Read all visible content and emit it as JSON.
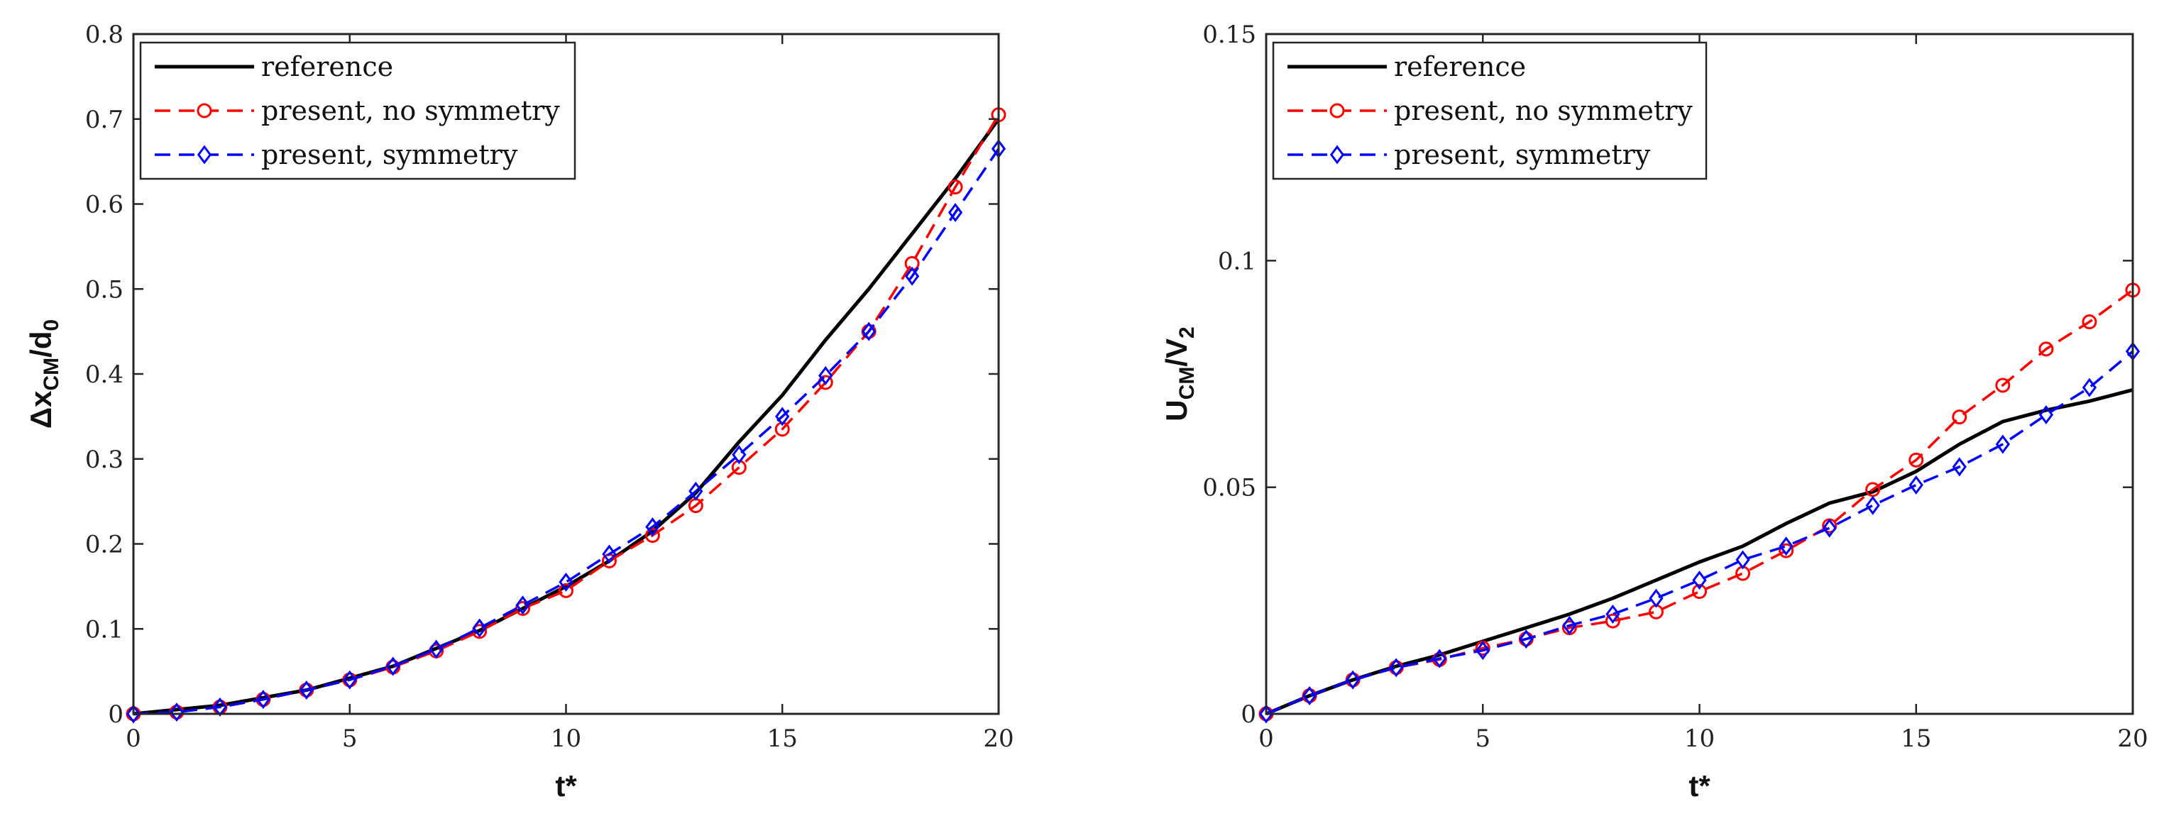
{
  "chart_data": [
    {
      "type": "line",
      "title": "",
      "xlabel": "t*",
      "ylabel": {
        "main": "Δx",
        "sub1": "CM",
        "mid": "/d",
        "sub2": "0"
      },
      "xlim": [
        0,
        20
      ],
      "ylim": [
        0,
        0.8
      ],
      "xticks": [
        "0",
        "5",
        "10",
        "15",
        "20"
      ],
      "yticks": [
        "0",
        "0.1",
        "0.2",
        "0.3",
        "0.4",
        "0.5",
        "0.6",
        "0.7",
        "0.8"
      ],
      "xtick_values": [
        0,
        5,
        10,
        15,
        20
      ],
      "ytick_values": [
        0,
        0.1,
        0.2,
        0.3,
        0.4,
        0.5,
        0.6,
        0.7,
        0.8
      ],
      "legend_position": "top-left",
      "series": [
        {
          "name": "reference",
          "color": "#000000",
          "style": "solid",
          "marker": "none",
          "x": [
            0,
            2,
            4,
            6,
            8,
            10,
            11,
            12,
            13,
            14,
            15,
            16,
            17,
            18,
            19,
            20
          ],
          "y": [
            0,
            0.01,
            0.028,
            0.056,
            0.098,
            0.15,
            0.18,
            0.215,
            0.26,
            0.32,
            0.375,
            0.44,
            0.5,
            0.565,
            0.63,
            0.7
          ]
        },
        {
          "name": "present, no symmetry",
          "color": "#ff0000",
          "style": "dashed",
          "marker": "circle",
          "x": [
            0,
            1,
            2,
            3,
            4,
            5,
            6,
            7,
            8,
            9,
            10,
            11,
            12,
            13,
            14,
            15,
            16,
            17,
            18,
            19,
            20
          ],
          "y": [
            0,
            0.002,
            0.008,
            0.017,
            0.028,
            0.04,
            0.055,
            0.074,
            0.097,
            0.124,
            0.145,
            0.18,
            0.21,
            0.245,
            0.29,
            0.335,
            0.39,
            0.45,
            0.53,
            0.62,
            0.705
          ]
        },
        {
          "name": "present, symmetry",
          "color": "#0000ff",
          "style": "dashed",
          "marker": "diamond",
          "x": [
            0,
            1,
            2,
            3,
            4,
            5,
            6,
            7,
            8,
            9,
            10,
            11,
            12,
            13,
            14,
            15,
            16,
            17,
            18,
            19,
            20
          ],
          "y": [
            0,
            0.002,
            0.008,
            0.017,
            0.028,
            0.04,
            0.056,
            0.076,
            0.101,
            0.128,
            0.155,
            0.188,
            0.22,
            0.262,
            0.305,
            0.35,
            0.398,
            0.45,
            0.515,
            0.59,
            0.665
          ]
        }
      ]
    },
    {
      "type": "line",
      "title": "",
      "xlabel": "t*",
      "ylabel": {
        "main": "U",
        "sub1": "CM",
        "mid": "/V",
        "sub2": "2"
      },
      "xlim": [
        0,
        20
      ],
      "ylim": [
        0,
        0.15
      ],
      "xticks": [
        "0",
        "5",
        "10",
        "15",
        "20"
      ],
      "yticks": [
        "0",
        "0.05",
        "0.1",
        "0.15"
      ],
      "xtick_values": [
        0,
        5,
        10,
        15,
        20
      ],
      "ytick_values": [
        0,
        0.05,
        0.1,
        0.15
      ],
      "legend_position": "top-left",
      "series": [
        {
          "name": "reference",
          "color": "#000000",
          "style": "solid",
          "marker": "none",
          "x": [
            0,
            1,
            2,
            3,
            4,
            5,
            6,
            7,
            8,
            9,
            10,
            11,
            12,
            13,
            14,
            15,
            16,
            17,
            18,
            19,
            20
          ],
          "y": [
            0,
            0.004,
            0.0075,
            0.0105,
            0.013,
            0.016,
            0.019,
            0.022,
            0.0255,
            0.0295,
            0.0335,
            0.037,
            0.042,
            0.0465,
            0.049,
            0.0535,
            0.0595,
            0.0645,
            0.067,
            0.069,
            0.0715
          ]
        },
        {
          "name": "present, no symmetry",
          "color": "#ff0000",
          "style": "dashed",
          "marker": "circle",
          "x": [
            0,
            1,
            2,
            3,
            4,
            5,
            6,
            7,
            8,
            9,
            10,
            11,
            12,
            13,
            14,
            15,
            16,
            17,
            18,
            19,
            20
          ],
          "y": [
            0,
            0.004,
            0.0075,
            0.0102,
            0.012,
            0.0145,
            0.0165,
            0.019,
            0.0205,
            0.0225,
            0.027,
            0.031,
            0.036,
            0.0415,
            0.0495,
            0.056,
            0.0655,
            0.0725,
            0.0805,
            0.0865,
            0.0935
          ]
        },
        {
          "name": "present, symmetry",
          "color": "#0000ff",
          "style": "dashed",
          "marker": "diamond",
          "x": [
            0,
            1,
            2,
            3,
            4,
            5,
            6,
            7,
            8,
            9,
            10,
            11,
            12,
            13,
            14,
            15,
            16,
            17,
            18,
            19,
            20
          ],
          "y": [
            0,
            0.004,
            0.0075,
            0.0102,
            0.0122,
            0.014,
            0.0165,
            0.0195,
            0.022,
            0.0255,
            0.0295,
            0.034,
            0.037,
            0.041,
            0.046,
            0.0505,
            0.0545,
            0.0595,
            0.066,
            0.072,
            0.08
          ]
        }
      ]
    }
  ]
}
